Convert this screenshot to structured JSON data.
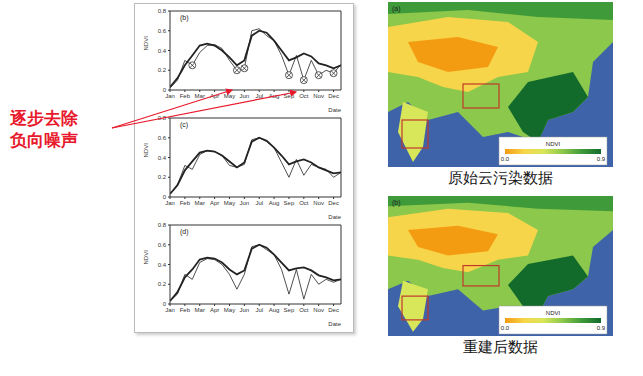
{
  "annotation": {
    "lines": [
      "逐步去除",
      "负向噪声"
    ],
    "color": "#e8192c"
  },
  "chart_data": [
    {
      "type": "line",
      "title": "(b)",
      "x_label": "Date",
      "y_label": "NDVI",
      "x": [
        0,
        1,
        2,
        3,
        4,
        5,
        6,
        7,
        8,
        9,
        10,
        11,
        12,
        13,
        14,
        15,
        16,
        17,
        18,
        19,
        20,
        21,
        22,
        23
      ],
      "xlim": [
        0,
        23
      ],
      "xticks": [
        {
          "value": 0,
          "label": "Jan"
        },
        {
          "value": 2,
          "label": "Feb"
        },
        {
          "value": 4,
          "label": "Mar"
        },
        {
          "value": 6,
          "label": "Apr"
        },
        {
          "value": 8,
          "label": "May"
        },
        {
          "value": 10,
          "label": "Jun"
        },
        {
          "value": 12,
          "label": "Jul"
        },
        {
          "value": 14,
          "label": "Aug"
        },
        {
          "value": 16,
          "label": "Sep"
        },
        {
          "value": 18,
          "label": "Oct"
        },
        {
          "value": 20,
          "label": "Nov"
        },
        {
          "value": 22,
          "label": "Dec"
        }
      ],
      "ylim": [
        0,
        0.8
      ],
      "yticks": [
        0,
        0.2,
        0.4,
        0.6,
        0.8
      ],
      "series": [
        {
          "color": "#222222",
          "line_style": "thin",
          "values": [
            0.02,
            0.1,
            0.3,
            0.25,
            0.38,
            0.45,
            0.46,
            0.42,
            0.3,
            0.2,
            0.22,
            0.6,
            0.62,
            0.55,
            0.5,
            0.35,
            0.15,
            0.35,
            0.1,
            0.3,
            0.15,
            0.2,
            0.17,
            0.26
          ]
        },
        {
          "color": "#222222",
          "line_style": "thick",
          "values": [
            0.03,
            0.12,
            0.25,
            0.35,
            0.45,
            0.47,
            0.45,
            0.4,
            0.33,
            0.25,
            0.3,
            0.55,
            0.6,
            0.58,
            0.5,
            0.4,
            0.3,
            0.33,
            0.37,
            0.34,
            0.27,
            0.25,
            0.22,
            0.25
          ]
        },
        {
          "type": "scatter",
          "marker": "circled_x",
          "color": "#333333",
          "values": [
            null,
            null,
            null,
            0.25,
            null,
            null,
            null,
            null,
            null,
            0.2,
            0.22,
            null,
            null,
            null,
            null,
            null,
            0.15,
            null,
            0.1,
            null,
            0.15,
            null,
            0.17,
            null
          ]
        }
      ]
    },
    {
      "type": "line",
      "title": "(c)",
      "x_label": "Date",
      "y_label": "NDVI",
      "x": [
        0,
        1,
        2,
        3,
        4,
        5,
        6,
        7,
        8,
        9,
        10,
        11,
        12,
        13,
        14,
        15,
        16,
        17,
        18,
        19,
        20,
        21,
        22,
        23
      ],
      "xlim": [
        0,
        23
      ],
      "xticks": [
        {
          "value": 0,
          "label": "Jan"
        },
        {
          "value": 2,
          "label": "Feb"
        },
        {
          "value": 4,
          "label": "Mar"
        },
        {
          "value": 6,
          "label": "Apr"
        },
        {
          "value": 8,
          "label": "May"
        },
        {
          "value": 10,
          "label": "Jun"
        },
        {
          "value": 12,
          "label": "Jul"
        },
        {
          "value": 14,
          "label": "Aug"
        },
        {
          "value": 16,
          "label": "Sep"
        },
        {
          "value": 18,
          "label": "Oct"
        },
        {
          "value": 20,
          "label": "Nov"
        },
        {
          "value": 22,
          "label": "Dec"
        }
      ],
      "ylim": [
        0,
        0.8
      ],
      "yticks": [
        0,
        0.2,
        0.4,
        0.6,
        0.8
      ],
      "series": [
        {
          "color": "#222222",
          "line_style": "thin",
          "values": [
            0.03,
            0.12,
            0.32,
            0.28,
            0.43,
            0.47,
            0.46,
            0.42,
            0.32,
            0.3,
            0.33,
            0.58,
            0.6,
            0.56,
            0.5,
            0.35,
            0.2,
            0.38,
            0.22,
            0.33,
            0.3,
            0.28,
            0.2,
            0.25
          ]
        },
        {
          "color": "#222222",
          "line_style": "thick",
          "values": [
            0.03,
            0.12,
            0.27,
            0.36,
            0.45,
            0.47,
            0.46,
            0.42,
            0.36,
            0.3,
            0.35,
            0.56,
            0.6,
            0.57,
            0.5,
            0.42,
            0.33,
            0.36,
            0.38,
            0.35,
            0.3,
            0.27,
            0.24,
            0.25
          ]
        }
      ]
    },
    {
      "type": "line",
      "title": "(d)",
      "x_label": "Date",
      "y_label": "NDVI",
      "x": [
        0,
        1,
        2,
        3,
        4,
        5,
        6,
        7,
        8,
        9,
        10,
        11,
        12,
        13,
        14,
        15,
        16,
        17,
        18,
        19,
        20,
        21,
        22,
        23
      ],
      "xlim": [
        0,
        23
      ],
      "xticks": [
        {
          "value": 0,
          "label": "Jan"
        },
        {
          "value": 2,
          "label": "Feb"
        },
        {
          "value": 4,
          "label": "Mar"
        },
        {
          "value": 6,
          "label": "Apr"
        },
        {
          "value": 8,
          "label": "May"
        },
        {
          "value": 10,
          "label": "Jun"
        },
        {
          "value": 12,
          "label": "Jul"
        },
        {
          "value": 14,
          "label": "Aug"
        },
        {
          "value": 16,
          "label": "Sep"
        },
        {
          "value": 18,
          "label": "Oct"
        },
        {
          "value": 20,
          "label": "Nov"
        },
        {
          "value": 22,
          "label": "Dec"
        }
      ],
      "ylim": [
        0,
        0.8
      ],
      "yticks": [
        0,
        0.2,
        0.4,
        0.6,
        0.8
      ],
      "series": [
        {
          "color": "#222222",
          "line_style": "thin",
          "values": [
            0.03,
            0.1,
            0.3,
            0.25,
            0.42,
            0.46,
            0.45,
            0.4,
            0.3,
            0.15,
            0.3,
            0.58,
            0.6,
            0.55,
            0.5,
            0.35,
            0.1,
            0.35,
            0.05,
            0.3,
            0.2,
            0.25,
            0.22,
            0.25
          ]
        },
        {
          "color": "#222222",
          "line_style": "thick",
          "values": [
            0.03,
            0.12,
            0.27,
            0.35,
            0.45,
            0.47,
            0.46,
            0.42,
            0.35,
            0.3,
            0.34,
            0.56,
            0.6,
            0.57,
            0.5,
            0.42,
            0.34,
            0.36,
            0.37,
            0.34,
            0.29,
            0.27,
            0.24,
            0.25
          ]
        }
      ]
    }
  ],
  "maps": [
    {
      "label": "(a)",
      "caption": "原始云污染数据",
      "colorbar": {
        "title": "NDVI",
        "range": [
          0,
          0.9
        ],
        "ticks": [
          {
            "value": 0,
            "label": "0.0"
          },
          {
            "value": 0.9,
            "label": "0.9"
          }
        ],
        "colors": [
          "#f39c12",
          "#f7d54a",
          "#d8e65a",
          "#8cc84b",
          "#3f9a3a",
          "#126b2b"
        ]
      }
    },
    {
      "label": "(b)",
      "caption": "重建后数据",
      "colorbar": {
        "title": "NDVI",
        "range": [
          0,
          0.9
        ],
        "ticks": [
          {
            "value": 0,
            "label": "0.0"
          },
          {
            "value": 0.9,
            "label": "0.9"
          }
        ],
        "colors": [
          "#f39c12",
          "#f7d54a",
          "#d8e65a",
          "#8cc84b",
          "#3f9a3a",
          "#126b2b"
        ]
      }
    }
  ]
}
